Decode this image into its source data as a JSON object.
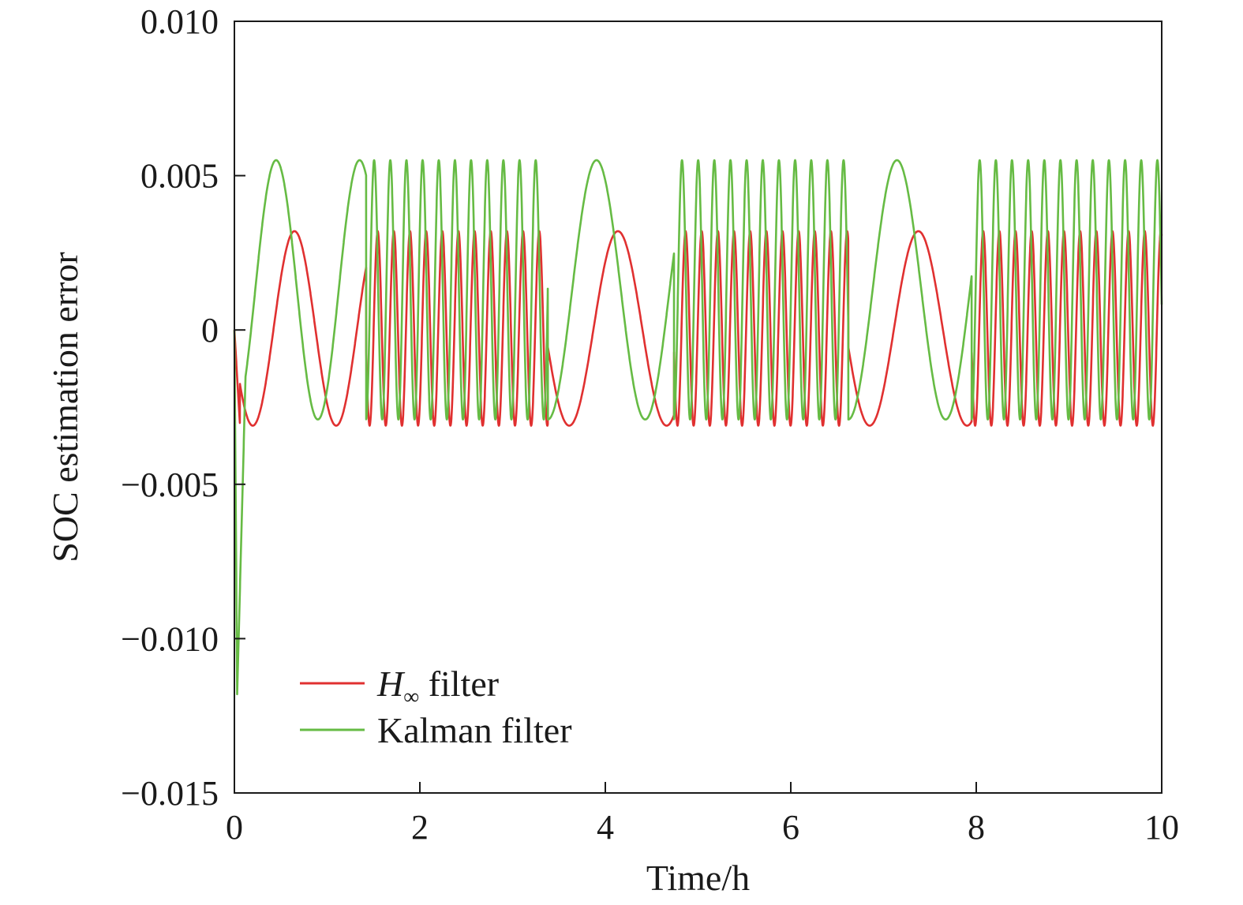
{
  "chart_data": {
    "type": "line",
    "xlabel": "Time/h",
    "ylabel": "SOC estimation error",
    "xlim": [
      0,
      10
    ],
    "ylim": [
      -0.015,
      0.01
    ],
    "x_ticks": [
      0,
      2,
      4,
      6,
      8,
      10
    ],
    "x_tick_labels": [
      "0",
      "2",
      "4",
      "6",
      "8",
      "10"
    ],
    "y_ticks": [
      0.01,
      0.005,
      0,
      -0.005,
      -0.01,
      -0.015
    ],
    "y_tick_labels": [
      "0.010",
      "0.005",
      "0",
      "−0.005",
      "−0.010",
      "−0.015"
    ],
    "grid": false,
    "legend_position": "bottom-left",
    "series": [
      {
        "name": "H∞ filter",
        "name_main": "H",
        "name_sub": "∞",
        "name_rest": " filter",
        "color": "#e03030",
        "amplitude_high": 0.0032,
        "amplitude_low": -0.0031,
        "phase_offset": 0.0
      },
      {
        "name": "Kalman filter",
        "color": "#66bb44",
        "amplitude_high": 0.0055,
        "amplitude_low": -0.0029,
        "initial_min": -0.0118,
        "phase_offset": 0.5
      }
    ],
    "segments": [
      {
        "x_start": 0.0,
        "x_end": 1.42,
        "period": 0.9
      },
      {
        "x_start": 1.42,
        "x_end": 3.38,
        "period": 0.1742
      },
      {
        "x_start": 3.38,
        "x_end": 4.74,
        "period": 1.05
      },
      {
        "x_start": 4.74,
        "x_end": 6.62,
        "period": 0.1742
      },
      {
        "x_start": 6.62,
        "x_end": 7.95,
        "period": 1.05
      },
      {
        "x_start": 7.95,
        "x_end": 10.0,
        "period": 0.1742
      }
    ]
  }
}
